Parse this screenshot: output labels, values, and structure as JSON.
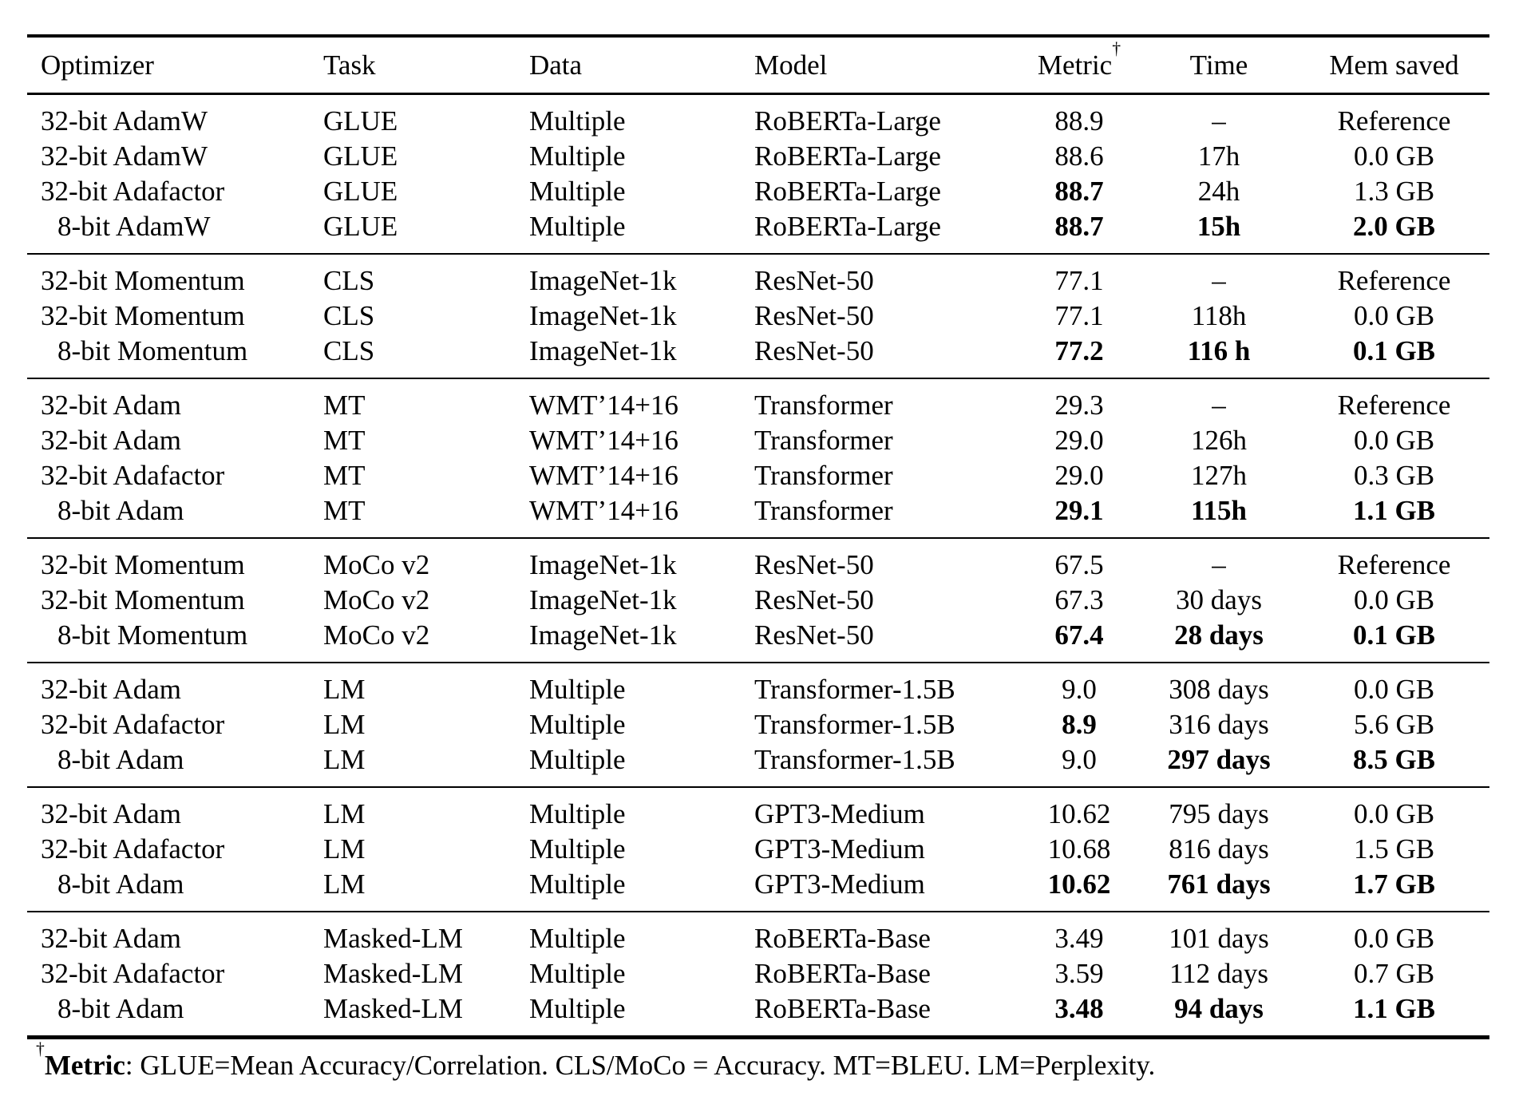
{
  "colors": {
    "text": "#000000",
    "background": "#ffffff",
    "rule": "#000000"
  },
  "table": {
    "columns": [
      {
        "label": "Optimizer"
      },
      {
        "label": "Task"
      },
      {
        "label": "Data"
      },
      {
        "label": "Model"
      },
      {
        "label": "Metric",
        "sup": "†"
      },
      {
        "label": "Time"
      },
      {
        "label": "Mem saved"
      }
    ],
    "groups": [
      {
        "rows": [
          {
            "cells": [
              "32-bit AdamW",
              "GLUE",
              "Multiple",
              "RoBERTa-Large",
              "88.9",
              "–",
              "Reference"
            ],
            "bold": [],
            "indent": false
          },
          {
            "cells": [
              "32-bit AdamW",
              "GLUE",
              "Multiple",
              "RoBERTa-Large",
              "88.6",
              "17h",
              "0.0 GB"
            ],
            "bold": [],
            "indent": false
          },
          {
            "cells": [
              "32-bit Adafactor",
              "GLUE",
              "Multiple",
              "RoBERTa-Large",
              "88.7",
              "24h",
              "1.3 GB"
            ],
            "bold": [
              4
            ],
            "indent": false
          },
          {
            "cells": [
              "8-bit AdamW",
              "GLUE",
              "Multiple",
              "RoBERTa-Large",
              "88.7",
              "15h",
              "2.0 GB"
            ],
            "bold": [
              4,
              5,
              6
            ],
            "indent": true
          }
        ]
      },
      {
        "rows": [
          {
            "cells": [
              "32-bit Momentum",
              "CLS",
              "ImageNet-1k",
              "ResNet-50",
              "77.1",
              "–",
              "Reference"
            ],
            "bold": [],
            "indent": false
          },
          {
            "cells": [
              "32-bit Momentum",
              "CLS",
              "ImageNet-1k",
              "ResNet-50",
              "77.1",
              "118h",
              "0.0 GB"
            ],
            "bold": [],
            "indent": false
          },
          {
            "cells": [
              "8-bit Momentum",
              "CLS",
              "ImageNet-1k",
              "ResNet-50",
              "77.2",
              "116 h",
              "0.1 GB"
            ],
            "bold": [
              4,
              5,
              6
            ],
            "indent": true
          }
        ]
      },
      {
        "rows": [
          {
            "cells": [
              "32-bit Adam",
              "MT",
              "WMT’14+16",
              "Transformer",
              "29.3",
              "–",
              "Reference"
            ],
            "bold": [],
            "indent": false
          },
          {
            "cells": [
              "32-bit Adam",
              "MT",
              "WMT’14+16",
              "Transformer",
              "29.0",
              "126h",
              "0.0 GB"
            ],
            "bold": [],
            "indent": false
          },
          {
            "cells": [
              "32-bit Adafactor",
              "MT",
              "WMT’14+16",
              "Transformer",
              "29.0",
              "127h",
              "0.3 GB"
            ],
            "bold": [],
            "indent": false
          },
          {
            "cells": [
              "8-bit Adam",
              "MT",
              "WMT’14+16",
              "Transformer",
              "29.1",
              "115h",
              "1.1 GB"
            ],
            "bold": [
              4,
              5,
              6
            ],
            "indent": true
          }
        ]
      },
      {
        "rows": [
          {
            "cells": [
              "32-bit Momentum",
              "MoCo v2",
              "ImageNet-1k",
              "ResNet-50",
              "67.5",
              "–",
              "Reference"
            ],
            "bold": [],
            "indent": false
          },
          {
            "cells": [
              "32-bit Momentum",
              "MoCo v2",
              "ImageNet-1k",
              "ResNet-50",
              "67.3",
              "30 days",
              "0.0 GB"
            ],
            "bold": [],
            "indent": false
          },
          {
            "cells": [
              "8-bit Momentum",
              "MoCo v2",
              "ImageNet-1k",
              "ResNet-50",
              "67.4",
              "28 days",
              "0.1 GB"
            ],
            "bold": [
              4,
              5,
              6
            ],
            "indent": true
          }
        ]
      },
      {
        "rows": [
          {
            "cells": [
              "32-bit Adam",
              "LM",
              "Multiple",
              "Transformer-1.5B",
              "9.0",
              "308 days",
              "0.0 GB"
            ],
            "bold": [],
            "indent": false
          },
          {
            "cells": [
              "32-bit Adafactor",
              "LM",
              "Multiple",
              "Transformer-1.5B",
              "8.9",
              "316 days",
              "5.6 GB"
            ],
            "bold": [
              4
            ],
            "indent": false
          },
          {
            "cells": [
              "8-bit Adam",
              "LM",
              "Multiple",
              "Transformer-1.5B",
              "9.0",
              "297 days",
              "8.5 GB"
            ],
            "bold": [
              5,
              6
            ],
            "indent": true
          }
        ]
      },
      {
        "rows": [
          {
            "cells": [
              "32-bit Adam",
              "LM",
              "Multiple",
              "GPT3-Medium",
              "10.62",
              "795 days",
              "0.0 GB"
            ],
            "bold": [],
            "indent": false
          },
          {
            "cells": [
              "32-bit Adafactor",
              "LM",
              "Multiple",
              "GPT3-Medium",
              "10.68",
              "816 days",
              "1.5 GB"
            ],
            "bold": [],
            "indent": false
          },
          {
            "cells": [
              "8-bit Adam",
              "LM",
              "Multiple",
              "GPT3-Medium",
              "10.62",
              "761 days",
              "1.7 GB"
            ],
            "bold": [
              4,
              5,
              6
            ],
            "indent": true
          }
        ]
      },
      {
        "rows": [
          {
            "cells": [
              "32-bit Adam",
              "Masked-LM",
              "Multiple",
              "RoBERTa-Base",
              "3.49",
              "101 days",
              "0.0 GB"
            ],
            "bold": [],
            "indent": false
          },
          {
            "cells": [
              "32-bit Adafactor",
              "Masked-LM",
              "Multiple",
              "RoBERTa-Base",
              "3.59",
              "112 days",
              "0.7 GB"
            ],
            "bold": [],
            "indent": false
          },
          {
            "cells": [
              "8-bit Adam",
              "Masked-LM",
              "Multiple",
              "RoBERTa-Base",
              "3.48",
              "94 days",
              "1.1 GB"
            ],
            "bold": [
              4,
              5,
              6
            ],
            "indent": true
          }
        ]
      }
    ]
  },
  "footnote": {
    "dagger": "†",
    "label": "Metric",
    "text": ": GLUE=Mean Accuracy/Correlation. CLS/MoCo = Accuracy. MT=BLEU. LM=Perplexity."
  }
}
